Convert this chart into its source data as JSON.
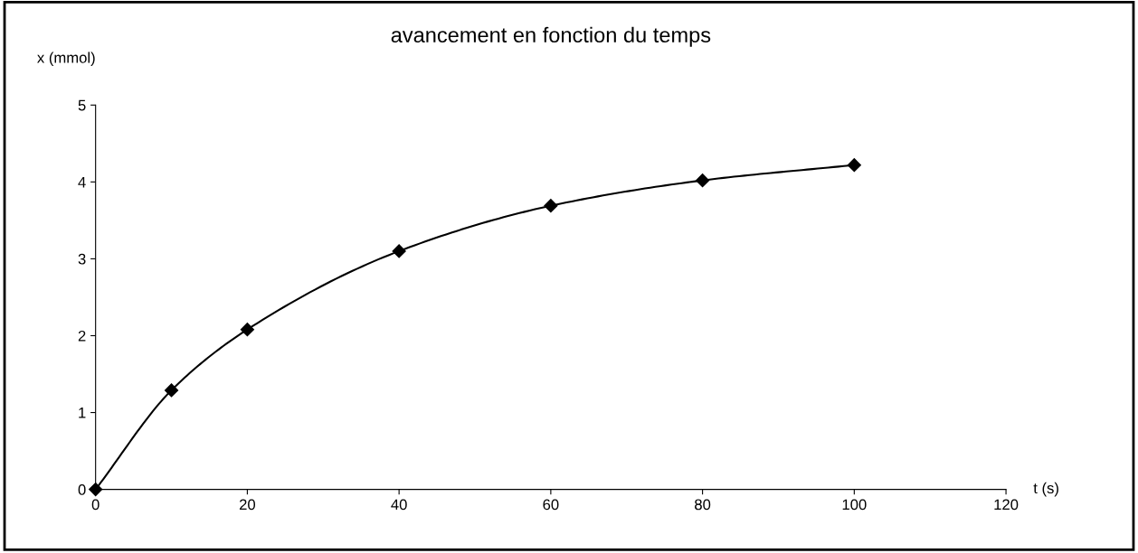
{
  "chart_data": {
    "type": "line",
    "title": "avancement en fonction du temps",
    "xlabel": "t (s)",
    "ylabel": "x (mmol)",
    "x": [
      0,
      10,
      20,
      40,
      60,
      80,
      100
    ],
    "series": [
      {
        "color": "#000000",
        "values": [
          0,
          1.29,
          2.08,
          3.1,
          3.69,
          4.02,
          4.22
        ]
      }
    ],
    "xlim": [
      0,
      120
    ],
    "xticks": [
      0,
      20,
      40,
      60,
      80,
      100,
      120
    ],
    "ylim": [
      0,
      5
    ],
    "yticks": [
      0,
      1,
      2,
      3,
      4,
      5
    ],
    "grid": false,
    "marker": "diamond",
    "line_style": "solid"
  }
}
